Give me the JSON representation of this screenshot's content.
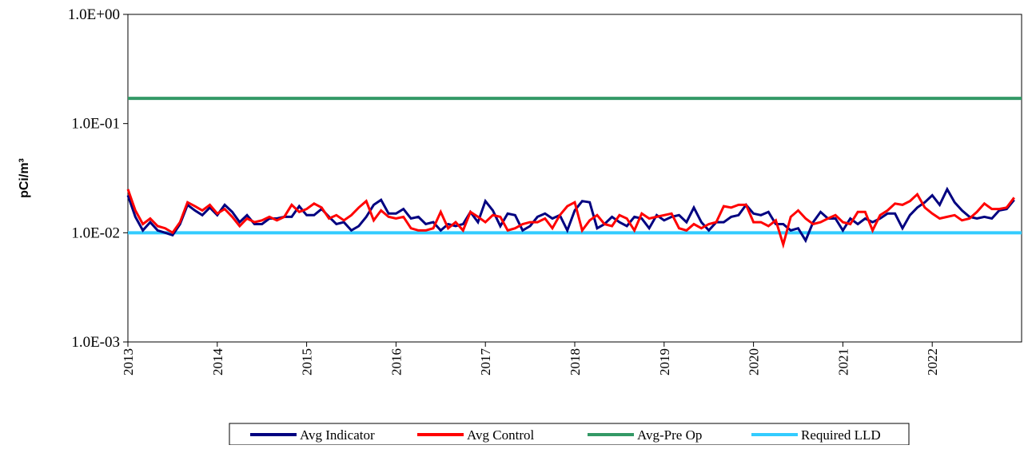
{
  "chart_data": {
    "type": "line",
    "y_label": "pCi/m³",
    "log_scale": true,
    "ylim": [
      0.001,
      1
    ],
    "yticks": [
      {
        "value": 0.001,
        "label": "1.0E-03"
      },
      {
        "value": 0.01,
        "label": "1.0E-02"
      },
      {
        "value": 0.1,
        "label": "1.0E-01"
      },
      {
        "value": 1,
        "label": "1.0E+00"
      }
    ],
    "xlim": [
      2013,
      2023
    ],
    "xticks": [
      2013,
      2014,
      2015,
      2016,
      2017,
      2018,
      2019,
      2020,
      2021,
      2022
    ],
    "x": [
      2013,
      2013.083,
      2013.167,
      2013.25,
      2013.333,
      2013.417,
      2013.5,
      2013.583,
      2013.667,
      2013.75,
      2013.833,
      2013.917,
      2014,
      2014.083,
      2014.167,
      2014.25,
      2014.333,
      2014.417,
      2014.5,
      2014.583,
      2014.667,
      2014.75,
      2014.833,
      2014.917,
      2015,
      2015.083,
      2015.167,
      2015.25,
      2015.333,
      2015.417,
      2015.5,
      2015.583,
      2015.667,
      2015.75,
      2015.833,
      2015.917,
      2016,
      2016.083,
      2016.167,
      2016.25,
      2016.333,
      2016.417,
      2016.5,
      2016.583,
      2016.667,
      2016.75,
      2016.833,
      2016.917,
      2017,
      2017.083,
      2017.167,
      2017.25,
      2017.333,
      2017.417,
      2017.5,
      2017.583,
      2017.667,
      2017.75,
      2017.833,
      2017.917,
      2018,
      2018.083,
      2018.167,
      2018.25,
      2018.333,
      2018.417,
      2018.5,
      2018.583,
      2018.667,
      2018.75,
      2018.833,
      2018.917,
      2019,
      2019.083,
      2019.167,
      2019.25,
      2019.333,
      2019.417,
      2019.5,
      2019.583,
      2019.667,
      2019.75,
      2019.833,
      2019.917,
      2020,
      2020.083,
      2020.167,
      2020.25,
      2020.333,
      2020.417,
      2020.5,
      2020.583,
      2020.667,
      2020.75,
      2020.833,
      2020.917,
      2021,
      2021.083,
      2021.167,
      2021.25,
      2021.333,
      2021.417,
      2021.5,
      2021.583,
      2021.667,
      2021.75,
      2021.833,
      2021.917,
      2022,
      2022.083,
      2022.167,
      2022.25,
      2022.333,
      2022.417,
      2022.5,
      2022.583,
      2022.667,
      2022.75,
      2022.833,
      2022.917
    ],
    "series": [
      {
        "name": "Avg Indicator",
        "color": "#000080",
        "values": [
          0.022,
          0.014,
          0.0105,
          0.0125,
          0.0105,
          0.01,
          0.0095,
          0.012,
          0.018,
          0.016,
          0.0145,
          0.017,
          0.0145,
          0.018,
          0.0155,
          0.0125,
          0.0145,
          0.012,
          0.012,
          0.0135,
          0.0135,
          0.014,
          0.014,
          0.0175,
          0.0145,
          0.0145,
          0.0165,
          0.014,
          0.012,
          0.0125,
          0.0105,
          0.0115,
          0.014,
          0.018,
          0.02,
          0.015,
          0.015,
          0.0165,
          0.0135,
          0.014,
          0.012,
          0.0125,
          0.0105,
          0.012,
          0.0115,
          0.012,
          0.0155,
          0.0125,
          0.0195,
          0.016,
          0.0115,
          0.015,
          0.0145,
          0.0105,
          0.0115,
          0.014,
          0.015,
          0.0135,
          0.0145,
          0.0105,
          0.016,
          0.0195,
          0.019,
          0.011,
          0.012,
          0.014,
          0.0125,
          0.0115,
          0.014,
          0.0135,
          0.011,
          0.0145,
          0.013,
          0.014,
          0.0145,
          0.0125,
          0.017,
          0.0125,
          0.0105,
          0.0125,
          0.0125,
          0.014,
          0.0145,
          0.018,
          0.015,
          0.0145,
          0.0155,
          0.012,
          0.012,
          0.0105,
          0.011,
          0.0085,
          0.0125,
          0.0155,
          0.0135,
          0.0135,
          0.0105,
          0.0135,
          0.012,
          0.0135,
          0.0125,
          0.0135,
          0.015,
          0.015,
          0.011,
          0.0145,
          0.017,
          0.019,
          0.022,
          0.018,
          0.025,
          0.019,
          0.016,
          0.014,
          0.0135,
          0.014,
          0.0135,
          0.016,
          0.0165,
          0.02
        ]
      },
      {
        "name": "Avg Control",
        "color": "#ff0000",
        "values": [
          0.025,
          0.016,
          0.012,
          0.0135,
          0.0115,
          0.011,
          0.01,
          0.0125,
          0.019,
          0.0175,
          0.016,
          0.018,
          0.015,
          0.0165,
          0.014,
          0.0115,
          0.0135,
          0.0125,
          0.013,
          0.014,
          0.013,
          0.014,
          0.018,
          0.0155,
          0.0165,
          0.0185,
          0.017,
          0.0135,
          0.0145,
          0.013,
          0.0145,
          0.017,
          0.0195,
          0.013,
          0.016,
          0.014,
          0.0135,
          0.014,
          0.011,
          0.0105,
          0.0105,
          0.011,
          0.0155,
          0.011,
          0.0125,
          0.0105,
          0.0155,
          0.014,
          0.0125,
          0.0145,
          0.014,
          0.0105,
          0.011,
          0.012,
          0.0125,
          0.0125,
          0.0135,
          0.011,
          0.0145,
          0.0175,
          0.019,
          0.0105,
          0.013,
          0.0145,
          0.012,
          0.0115,
          0.0145,
          0.0135,
          0.0105,
          0.015,
          0.0135,
          0.014,
          0.0145,
          0.015,
          0.011,
          0.0105,
          0.012,
          0.011,
          0.012,
          0.0125,
          0.0175,
          0.017,
          0.018,
          0.018,
          0.0125,
          0.0125,
          0.0115,
          0.013,
          0.0078,
          0.014,
          0.016,
          0.0135,
          0.012,
          0.0125,
          0.0135,
          0.0145,
          0.0125,
          0.012,
          0.0155,
          0.0155,
          0.0105,
          0.0145,
          0.016,
          0.0185,
          0.018,
          0.0195,
          0.0225,
          0.017,
          0.015,
          0.0135,
          0.014,
          0.0145,
          0.013,
          0.0135,
          0.0155,
          0.0185,
          0.0165,
          0.0165,
          0.017,
          0.021
        ]
      },
      {
        "name": "Avg-Pre Op",
        "color": "#339966",
        "value": 0.17
      },
      {
        "name": "Required LLD",
        "color": "#33ccff",
        "value": 0.01
      }
    ]
  }
}
